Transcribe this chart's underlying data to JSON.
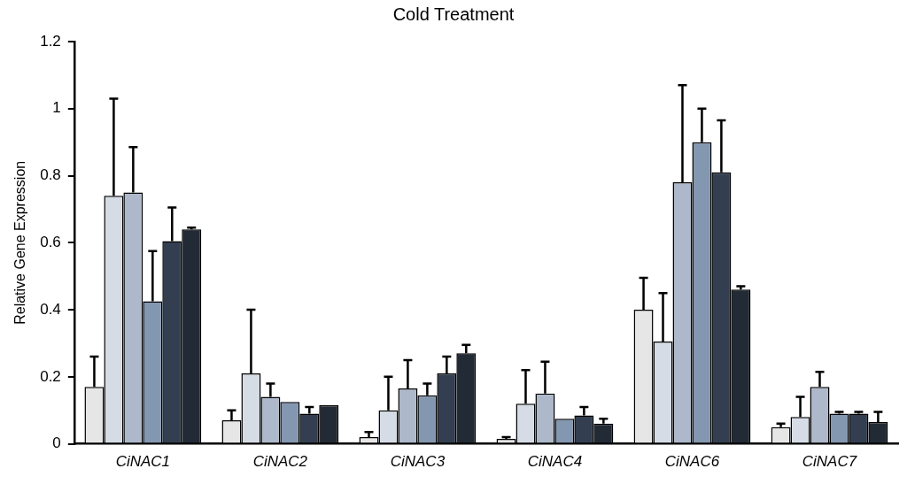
{
  "chart_data": {
    "type": "bar",
    "title": "Cold Treatment",
    "ylabel": "Relative Gene Expression",
    "categories": [
      "CiNAC1",
      "CiNAC2",
      "CiNAC3",
      "CiNAC4",
      "CiNAC6",
      "CiNAC7"
    ],
    "series": [
      {
        "color": "#e6e6e6",
        "values": [
          0.17,
          0.07,
          0.02,
          0.015,
          0.4,
          0.05
        ],
        "errors": [
          [
            0.17,
            0.26
          ],
          [
            0.07,
            0.1
          ],
          [
            0.02,
            0.035
          ],
          [
            0.015,
            0.02
          ],
          [
            0.4,
            0.495
          ],
          [
            0.05,
            0.06
          ]
        ]
      },
      {
        "color": "#d6dce5",
        "values": [
          0.74,
          0.21,
          0.1,
          0.12,
          0.305,
          0.08
        ],
        "errors": [
          [
            0.74,
            1.03
          ],
          [
            0.21,
            0.4
          ],
          [
            0.1,
            0.2
          ],
          [
            0.12,
            0.22
          ],
          [
            0.305,
            0.45
          ],
          [
            0.08,
            0.14
          ]
        ]
      },
      {
        "color": "#adb9ca",
        "values": [
          0.75,
          0.14,
          0.165,
          0.15,
          0.78,
          0.17
        ],
        "errors": [
          [
            0.75,
            0.885
          ],
          [
            0.14,
            0.18
          ],
          [
            0.165,
            0.25
          ],
          [
            0.15,
            0.245
          ],
          [
            0.78,
            1.07
          ],
          [
            0.17,
            0.215
          ]
        ]
      },
      {
        "color": "#8497b0",
        "values": [
          0.425,
          0.125,
          0.145,
          0.075,
          0.9,
          0.09
        ],
        "errors": [
          [
            0.425,
            0.575
          ],
          null,
          [
            0.145,
            0.18
          ],
          null,
          [
            0.9,
            1.0
          ],
          [
            0.09,
            0.095
          ]
        ]
      },
      {
        "color": "#333f50",
        "values": [
          0.605,
          0.09,
          0.21,
          0.085,
          0.81,
          0.09
        ],
        "errors": [
          [
            0.605,
            0.705
          ],
          [
            0.09,
            0.11
          ],
          [
            0.21,
            0.26
          ],
          [
            0.085,
            0.11
          ],
          [
            0.81,
            0.965
          ],
          [
            0.09,
            0.095
          ]
        ]
      },
      {
        "color": "#222a35",
        "values": [
          0.64,
          0.115,
          0.27,
          0.06,
          0.46,
          0.065
        ],
        "errors": [
          [
            0.64,
            0.645
          ],
          null,
          [
            0.27,
            0.295
          ],
          [
            0.06,
            0.075
          ],
          [
            0.46,
            0.47
          ],
          [
            0.065,
            0.095
          ]
        ]
      }
    ],
    "ylim": [
      0,
      1.2
    ],
    "yticks": [
      0,
      0.2,
      0.4,
      0.6,
      0.8,
      1,
      1.2
    ],
    "grid": false,
    "legend": false
  }
}
